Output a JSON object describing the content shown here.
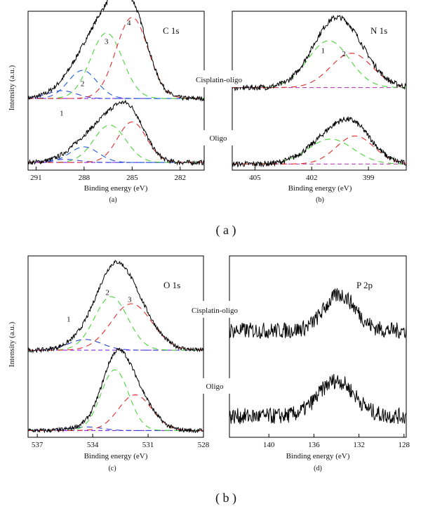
{
  "figure": {
    "group_labels": [
      "( a )",
      "( b )"
    ],
    "cisplatin_label": "Cisplatin-oligo",
    "oligo_label": "Oligo",
    "ylabel": "Intensity (a.u.)"
  },
  "chart_data": [
    {
      "id": "c1s",
      "type": "line",
      "title": "C 1s",
      "caption": "(a)",
      "xlabel": "Binding energy (eV)",
      "ylabel": "Intensity (a.u.)",
      "xlim": [
        291.5,
        280.5
      ],
      "x_ticks": [
        291,
        288,
        285,
        282
      ],
      "x_tick_labels": [
        "291",
        "288",
        "285",
        "282"
      ],
      "noise": 0.015,
      "baseline_color": "#8a2be2",
      "peak_labels": [
        {
          "text": "1",
          "x": 289.4,
          "y": 0.34
        },
        {
          "text": "2",
          "x": 288.1,
          "y": 0.53
        },
        {
          "text": "3",
          "x": 286.6,
          "y": 0.8
        },
        {
          "text": "4",
          "x": 285.2,
          "y": 0.92
        }
      ],
      "series": [
        {
          "name": "Cisplatin-oligo",
          "offset": 0.43,
          "background": 0.02,
          "components": [
            {
              "label": "1",
              "center": 289.4,
              "height": 0.05,
              "width": 0.9,
              "color": "#2d3fd6"
            },
            {
              "label": "2",
              "center": 288.1,
              "height": 0.18,
              "width": 0.9,
              "color": "#1f5fe0"
            },
            {
              "label": "3",
              "center": 286.6,
              "height": 0.42,
              "width": 1.0,
              "color": "#4bd43b"
            },
            {
              "label": "4",
              "center": 285.0,
              "height": 0.52,
              "width": 1.0,
              "color": "#e12d2d"
            }
          ]
        },
        {
          "name": "Oligo",
          "offset": 0.03,
          "background": 0.01,
          "components": [
            {
              "label": "1",
              "center": 289.2,
              "height": 0.02,
              "width": 0.9,
              "color": "#2d3fd6"
            },
            {
              "label": "2",
              "center": 288.0,
              "height": 0.1,
              "width": 0.9,
              "color": "#1f5fe0"
            },
            {
              "label": "3",
              "center": 286.4,
              "height": 0.24,
              "width": 1.0,
              "color": "#4bd43b"
            },
            {
              "label": "4",
              "center": 285.0,
              "height": 0.26,
              "width": 0.9,
              "color": "#e12d2d"
            }
          ]
        }
      ]
    },
    {
      "id": "n1s",
      "type": "line",
      "title": "N 1s",
      "caption": "(b)",
      "xlabel": "Binding energy (eV)",
      "ylabel": "",
      "xlim": [
        406.2,
        397.0
      ],
      "x_ticks": [
        405,
        402,
        399
      ],
      "x_tick_labels": [
        "405",
        "402",
        "399"
      ],
      "noise": 0.018,
      "baseline_color": "#c040c0",
      "peak_labels": [
        {
          "text": "1",
          "x": 401.4,
          "y": 0.74
        },
        {
          "text": "2",
          "x": 400.3,
          "y": 0.72
        }
      ],
      "series": [
        {
          "name": "Cisplatin-oligo",
          "offset": 0.5,
          "background": 0.02,
          "components": [
            {
              "label": "1",
              "center": 401.1,
              "height": 0.3,
              "width": 1.1,
              "color": "#4bd43b"
            },
            {
              "label": "2",
              "center": 399.9,
              "height": 0.22,
              "width": 1.1,
              "color": "#e12d2d"
            }
          ]
        },
        {
          "name": "Oligo",
          "offset": 0.02,
          "background": 0.01,
          "components": [
            {
              "label": "1",
              "center": 401.0,
              "height": 0.16,
              "width": 1.2,
              "color": "#4bd43b"
            },
            {
              "label": "2",
              "center": 399.7,
              "height": 0.18,
              "width": 1.0,
              "color": "#e12d2d"
            }
          ]
        }
      ]
    },
    {
      "id": "o1s",
      "type": "line",
      "title": "O 1s",
      "caption": "(c)",
      "xlabel": "Binding energy (eV)",
      "ylabel": "Intensity (a.u.)",
      "xlim": [
        537.5,
        528.0
      ],
      "x_ticks": [
        537,
        534,
        531,
        528
      ],
      "x_tick_labels": [
        "537",
        "534",
        "531",
        "528"
      ],
      "noise": 0.012,
      "baseline_color": "#8a2be2",
      "peak_labels": [
        {
          "text": "1",
          "x": 535.3,
          "y": 0.64
        },
        {
          "text": "2",
          "x": 533.2,
          "y": 0.79
        },
        {
          "text": "3",
          "x": 532.0,
          "y": 0.75
        }
      ],
      "series": [
        {
          "name": "Cisplatin-oligo",
          "offset": 0.46,
          "background": 0.02,
          "components": [
            {
              "label": "1",
              "center": 534.4,
              "height": 0.06,
              "width": 0.9,
              "color": "#2d3fd6"
            },
            {
              "label": "2",
              "center": 533.0,
              "height": 0.3,
              "width": 0.9,
              "color": "#4bd43b"
            },
            {
              "label": "3",
              "center": 531.9,
              "height": 0.26,
              "width": 1.1,
              "color": "#e12d2d"
            }
          ]
        },
        {
          "name": "Oligo",
          "offset": 0.02,
          "background": 0.01,
          "components": [
            {
              "label": "1",
              "center": 534.3,
              "height": 0.02,
              "width": 0.8,
              "color": "#2d3fd6"
            },
            {
              "label": "2",
              "center": 532.8,
              "height": 0.34,
              "width": 0.75,
              "color": "#4bd43b"
            },
            {
              "label": "3",
              "center": 531.7,
              "height": 0.2,
              "width": 0.9,
              "color": "#e12d2d"
            }
          ]
        }
      ]
    },
    {
      "id": "p2p",
      "type": "line",
      "title": "P 2p",
      "caption": "(d)",
      "xlabel": "Binding energy (eV)",
      "ylabel": "",
      "xlim": [
        143.5,
        127.8
      ],
      "x_ticks": [
        140,
        136,
        132,
        128
      ],
      "x_tick_labels": [
        "140",
        "136",
        "132",
        "128"
      ],
      "noise": 0.045,
      "baseline_color": "#8a2be2",
      "peak_labels": [],
      "series": [
        {
          "name": "Cisplatin-oligo",
          "offset": 0.53,
          "background": 0.06,
          "components": [
            {
              "label": "",
              "center": 133.7,
              "height": 0.2,
              "width": 1.4,
              "color": "#000000"
            }
          ]
        },
        {
          "name": "Oligo",
          "offset": 0.05,
          "background": 0.06,
          "components": [
            {
              "label": "",
              "center": 134.0,
              "height": 0.2,
              "width": 1.6,
              "color": "#000000"
            }
          ]
        }
      ]
    }
  ]
}
